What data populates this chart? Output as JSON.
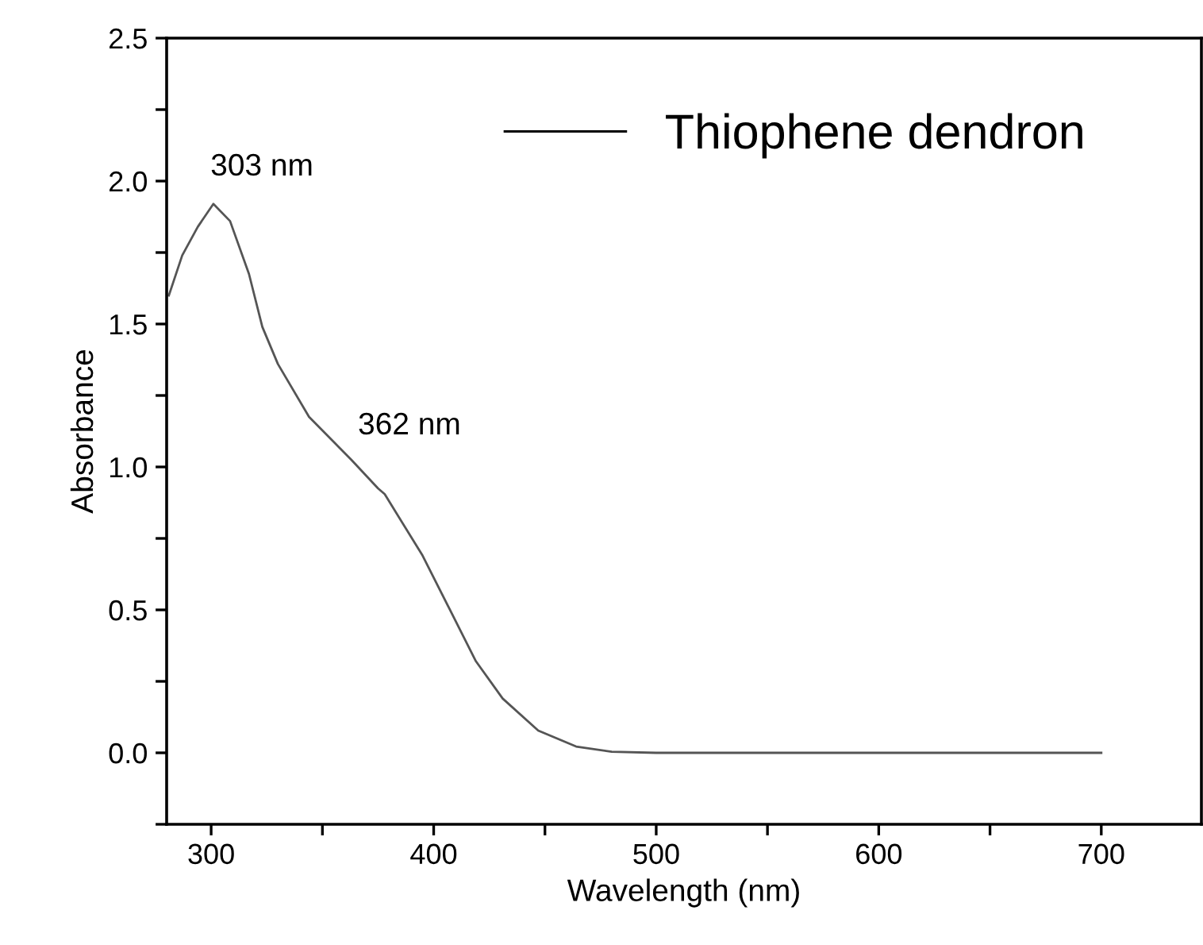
{
  "chart_data": {
    "type": "line",
    "xlabel": "Wavelength (nm)",
    "ylabel": "Absorbance",
    "xlim": [
      280,
      745
    ],
    "ylim": [
      -0.25,
      2.5
    ],
    "xticks": [
      300,
      {
        "value": 350,
        "label": null
      },
      400,
      {
        "value": 450,
        "label": null
      },
      500,
      {
        "value": 550,
        "label": null
      },
      600,
      {
        "value": 650,
        "label": null
      },
      700
    ],
    "yticks": [
      {
        "value": -0.25,
        "label": null
      },
      {
        "value": 0,
        "label": "0.0"
      },
      {
        "value": 0.25,
        "label": null
      },
      0.5,
      {
        "value": 0.75,
        "label": null
      },
      {
        "value": 1,
        "label": "1.0"
      },
      {
        "value": 1.25,
        "label": null
      },
      1.5,
      {
        "value": 1.75,
        "label": null
      },
      {
        "value": 2,
        "label": "2.0"
      },
      {
        "value": 2.25,
        "label": null
      },
      2.5
    ],
    "grid": false,
    "legend": "top right",
    "marker": "none",
    "line_style": "solid",
    "series": [
      {
        "name": "Thiophene dendron",
        "color": "#555555",
        "x": [
          281,
          287,
          294,
          301,
          308.5,
          317,
          323,
          330,
          344,
          363,
          375,
          378,
          395,
          407,
          419,
          431,
          447,
          464,
          480,
          500,
          600,
          700
        ],
        "values": [
          1.6,
          1.74,
          1.84,
          1.92,
          1.86,
          1.675,
          1.49,
          1.36,
          1.175,
          1.025,
          0.925,
          0.905,
          0.69,
          0.505,
          0.32,
          0.19,
          0.078,
          0.022,
          0.004,
          0.0,
          0.0,
          0.0
        ]
      }
    ],
    "annotations": [
      {
        "text": "303 nm",
        "x": 303,
        "y": 1.92
      },
      {
        "text": "362 nm",
        "x": 362,
        "y": 1.03
      }
    ]
  }
}
